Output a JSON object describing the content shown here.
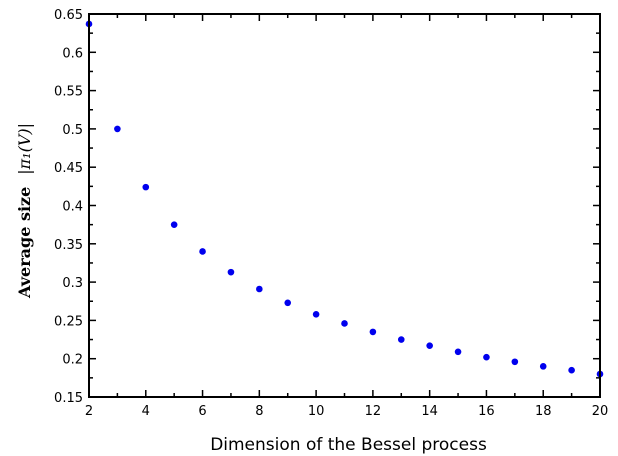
{
  "chart_data": {
    "type": "scatter",
    "xlabel": "Dimension of the Bessel process",
    "ylabel": "Average size",
    "ylabel_math": "|π₁(V)|",
    "xlim": [
      2,
      20
    ],
    "ylim": [
      0.15,
      0.65
    ],
    "x_ticks": [
      "2",
      "4",
      "6",
      "8",
      "10",
      "12",
      "14",
      "16",
      "18",
      "20"
    ],
    "y_ticks": [
      "0.15",
      "0.2",
      "0.25",
      "0.3",
      "0.35",
      "0.4",
      "0.45",
      "0.5",
      "0.55",
      "0.6",
      "0.65"
    ],
    "marker_color": "#0000ee",
    "grid": false,
    "points": [
      {
        "x": 2,
        "y": 0.637
      },
      {
        "x": 3,
        "y": 0.5
      },
      {
        "x": 4,
        "y": 0.424
      },
      {
        "x": 5,
        "y": 0.375
      },
      {
        "x": 6,
        "y": 0.34
      },
      {
        "x": 7,
        "y": 0.313
      },
      {
        "x": 8,
        "y": 0.291
      },
      {
        "x": 9,
        "y": 0.273
      },
      {
        "x": 10,
        "y": 0.258
      },
      {
        "x": 11,
        "y": 0.246
      },
      {
        "x": 12,
        "y": 0.235
      },
      {
        "x": 13,
        "y": 0.225
      },
      {
        "x": 14,
        "y": 0.217
      },
      {
        "x": 15,
        "y": 0.209
      },
      {
        "x": 16,
        "y": 0.202
      },
      {
        "x": 17,
        "y": 0.196
      },
      {
        "x": 18,
        "y": 0.19
      },
      {
        "x": 19,
        "y": 0.185
      },
      {
        "x": 20,
        "y": 0.18
      }
    ]
  }
}
